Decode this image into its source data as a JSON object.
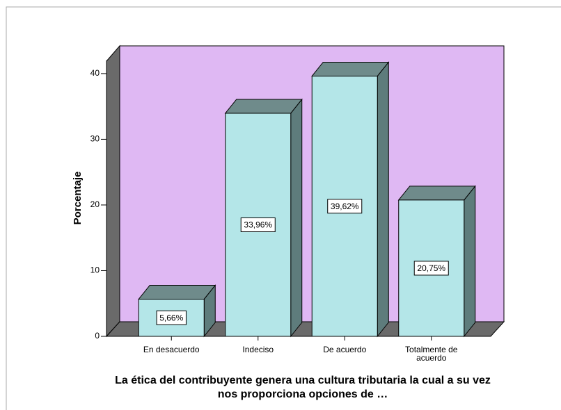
{
  "chart_data": {
    "type": "bar3d",
    "xlabel": "La ética del contribuyente genera una cultura tributaria la cual a su vez nos proporciona opciones de …",
    "ylabel": "Porcentaje",
    "categories": [
      "En desacuerdo",
      "Indeciso",
      "De acuerdo",
      "Totalmente de acuerdo"
    ],
    "values": [
      5.66,
      33.96,
      39.62,
      20.75
    ],
    "value_labels": [
      "5,66%",
      "33,96%",
      "39,62%",
      "20,75%"
    ],
    "color": "#b4e6e8",
    "ylim": [
      0,
      42
    ],
    "yticks": [
      0,
      10,
      20,
      30,
      40
    ]
  }
}
